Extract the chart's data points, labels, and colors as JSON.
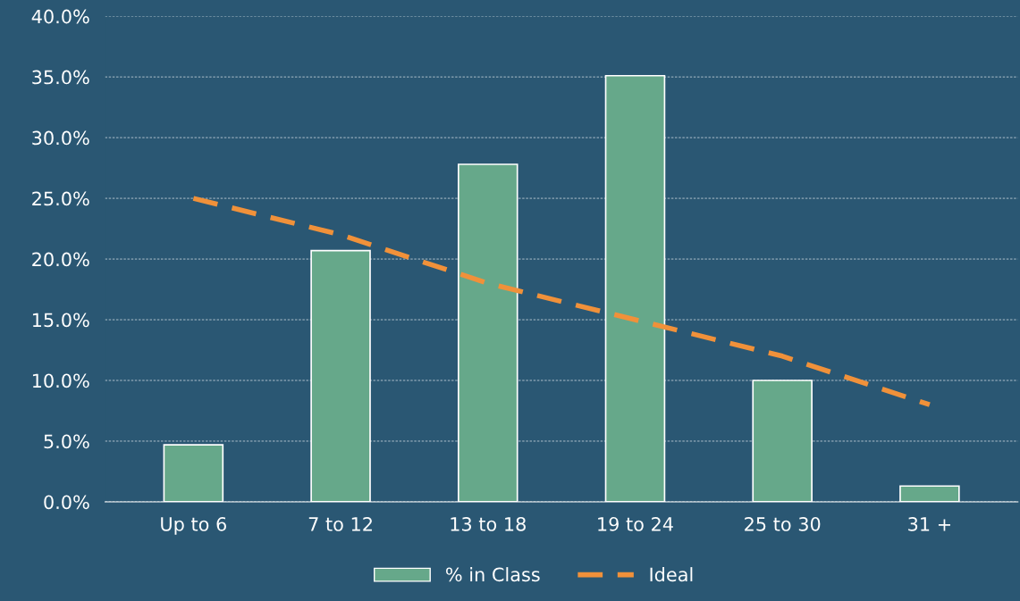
{
  "chart_data": {
    "type": "bar",
    "categories": [
      "Up to 6",
      "7 to 12",
      "13 to 18",
      "19 to 24",
      "25 to 30",
      "31 +"
    ],
    "series": [
      {
        "name": "% in Class",
        "color": "#66a88a",
        "values": [
          4.7,
          20.7,
          27.8,
          35.1,
          10.0,
          1.3
        ]
      },
      {
        "name": "Ideal",
        "type": "line",
        "color": "#f0913a",
        "line_style": "dashed",
        "values": [
          25,
          22,
          18,
          15,
          12,
          8
        ]
      }
    ],
    "ylim": [
      0,
      40
    ],
    "yticks": [
      {
        "value": 0,
        "label": "0.0%"
      },
      {
        "value": 5,
        "label": "5.0%"
      },
      {
        "value": 10,
        "label": "10.0%"
      },
      {
        "value": 15,
        "label": "15.0%"
      },
      {
        "value": 20,
        "label": "20.0%"
      },
      {
        "value": 25,
        "label": "25.0%"
      },
      {
        "value": 30,
        "label": "30.0%"
      },
      {
        "value": 35,
        "label": "35.0%"
      },
      {
        "value": 40,
        "label": "40.0%"
      }
    ],
    "grid": "y",
    "legend": "bottom"
  }
}
